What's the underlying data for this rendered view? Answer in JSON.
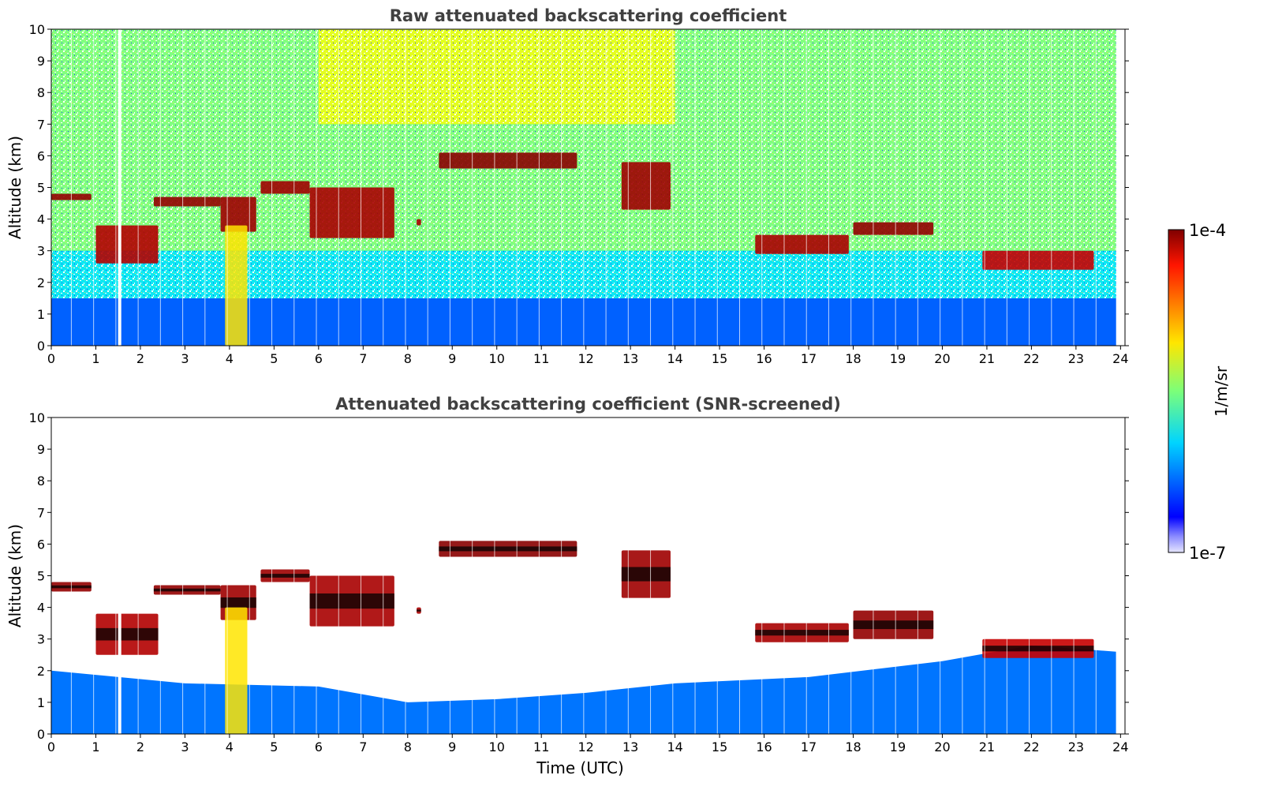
{
  "chart_data": [
    {
      "type": "heatmap",
      "title": "Raw attenuated backscattering coefficient",
      "xlabel": "",
      "ylabel": "Altitude (km)",
      "xlim": [
        0,
        24.1
      ],
      "ylim": [
        0,
        10
      ],
      "xticks": [
        "0",
        "1",
        "2",
        "3",
        "4",
        "5",
        "6",
        "7",
        "8",
        "9",
        "10",
        "11",
        "12",
        "13",
        "14",
        "15",
        "16",
        "17",
        "18",
        "19",
        "20",
        "21",
        "22",
        "23",
        "24"
      ],
      "yticks": [
        "0",
        "1",
        "2",
        "3",
        "4",
        "5",
        "6",
        "7",
        "8",
        "9",
        "10"
      ],
      "layers": [
        {
          "name": "boundary-layer",
          "x": [
            0,
            24
          ],
          "y": [
            0,
            1.5
          ],
          "level": 0.22
        },
        {
          "name": "noisy-free-troposphere",
          "x": [
            0,
            24
          ],
          "y": [
            1.5,
            10
          ],
          "level": 0.5
        }
      ],
      "features": [
        {
          "name": "cloud-1",
          "x": [
            0,
            0.9
          ],
          "y": [
            4.6,
            4.8
          ],
          "level": 0.98
        },
        {
          "name": "cloud-2",
          "x": [
            1.0,
            2.4
          ],
          "y": [
            2.6,
            3.8
          ],
          "level": 0.95
        },
        {
          "name": "cloud-3",
          "x": [
            2.3,
            3.8
          ],
          "y": [
            4.4,
            4.7
          ],
          "level": 0.98
        },
        {
          "name": "cloud-4",
          "x": [
            3.8,
            4.6
          ],
          "y": [
            3.6,
            4.7
          ],
          "level": 0.97
        },
        {
          "name": "precipitation-shaft",
          "x": [
            3.9,
            4.4
          ],
          "y": [
            0,
            3.8
          ],
          "level": 0.65
        },
        {
          "name": "cloud-5",
          "x": [
            4.7,
            5.8
          ],
          "y": [
            4.8,
            5.2
          ],
          "level": 0.97
        },
        {
          "name": "cloud-6",
          "x": [
            5.8,
            7.7
          ],
          "y": [
            3.4,
            5.0
          ],
          "level": 0.96
        },
        {
          "name": "cloud-7",
          "x": [
            8.2,
            8.3
          ],
          "y": [
            3.8,
            4.0
          ],
          "level": 0.96
        },
        {
          "name": "cloud-8",
          "x": [
            8.7,
            11.8
          ],
          "y": [
            5.6,
            6.1
          ],
          "level": 0.99
        },
        {
          "name": "cloud-9",
          "x": [
            12.8,
            13.9
          ],
          "y": [
            4.3,
            5.8
          ],
          "level": 0.97
        },
        {
          "name": "cloud-10",
          "x": [
            15.8,
            17.9
          ],
          "y": [
            2.9,
            3.5
          ],
          "level": 0.96
        },
        {
          "name": "cloud-11",
          "x": [
            18.0,
            19.8
          ],
          "y": [
            3.5,
            3.9
          ],
          "level": 0.98
        },
        {
          "name": "cloud-12",
          "x": [
            20.9,
            23.4
          ],
          "y": [
            2.4,
            3.0
          ],
          "level": 0.93
        }
      ]
    },
    {
      "type": "heatmap",
      "title": "Attenuated backscattering coefficient (SNR-screened)",
      "xlabel": "Time (UTC)",
      "ylabel": "Altitude (km)",
      "xlim": [
        0,
        24.1
      ],
      "ylim": [
        0,
        10
      ],
      "xticks": [
        "0",
        "1",
        "2",
        "3",
        "4",
        "5",
        "6",
        "7",
        "8",
        "9",
        "10",
        "11",
        "12",
        "13",
        "14",
        "15",
        "16",
        "17",
        "18",
        "19",
        "20",
        "21",
        "22",
        "23",
        "24"
      ],
      "yticks": [
        "0",
        "1",
        "2",
        "3",
        "4",
        "5",
        "6",
        "7",
        "8",
        "9",
        "10"
      ],
      "boundary_layer_top_km": [
        [
          0,
          2.0
        ],
        [
          3,
          1.6
        ],
        [
          6,
          1.5
        ],
        [
          8,
          1.0
        ],
        [
          10,
          1.1
        ],
        [
          12,
          1.3
        ],
        [
          14,
          1.6
        ],
        [
          17,
          1.8
        ],
        [
          20,
          2.3
        ],
        [
          22,
          2.8
        ],
        [
          23.9,
          2.6
        ]
      ],
      "features": [
        {
          "name": "cloud-1",
          "x": [
            0,
            0.9
          ],
          "y": [
            4.5,
            4.8
          ],
          "level": 0.98
        },
        {
          "name": "cloud-2",
          "x": [
            1.0,
            2.4
          ],
          "y": [
            2.5,
            3.8
          ],
          "level": 0.95
        },
        {
          "name": "cloud-3",
          "x": [
            2.3,
            3.8
          ],
          "y": [
            4.4,
            4.7
          ],
          "level": 0.98
        },
        {
          "name": "cloud-4",
          "x": [
            3.8,
            4.6
          ],
          "y": [
            3.6,
            4.7
          ],
          "level": 0.97
        },
        {
          "name": "precipitation-shaft",
          "x": [
            3.9,
            4.4
          ],
          "y": [
            0,
            4.0
          ],
          "level": 0.65
        },
        {
          "name": "cloud-5",
          "x": [
            4.7,
            5.8
          ],
          "y": [
            4.8,
            5.2
          ],
          "level": 0.97
        },
        {
          "name": "cloud-6",
          "x": [
            5.8,
            7.7
          ],
          "y": [
            3.4,
            5.0
          ],
          "level": 0.96
        },
        {
          "name": "cloud-7",
          "x": [
            8.2,
            8.3
          ],
          "y": [
            3.8,
            4.0
          ],
          "level": 0.96
        },
        {
          "name": "cloud-8",
          "x": [
            8.7,
            11.8
          ],
          "y": [
            5.6,
            6.1
          ],
          "level": 0.99
        },
        {
          "name": "cloud-9",
          "x": [
            12.8,
            13.9
          ],
          "y": [
            4.3,
            5.8
          ],
          "level": 0.97
        },
        {
          "name": "cloud-10",
          "x": [
            15.8,
            17.9
          ],
          "y": [
            2.9,
            3.5
          ],
          "level": 0.96
        },
        {
          "name": "cloud-11",
          "x": [
            18.0,
            19.8
          ],
          "y": [
            3.0,
            3.9
          ],
          "level": 0.98
        },
        {
          "name": "cloud-12",
          "x": [
            20.9,
            23.4
          ],
          "y": [
            2.4,
            3.0
          ],
          "level": 0.93
        }
      ]
    }
  ],
  "colorbar": {
    "label": "1/m/sr",
    "min_label": "1e-7",
    "max_label": "1e-4",
    "colormap": "jet"
  },
  "data_gaps_utc": [
    1.5,
    1.56
  ]
}
